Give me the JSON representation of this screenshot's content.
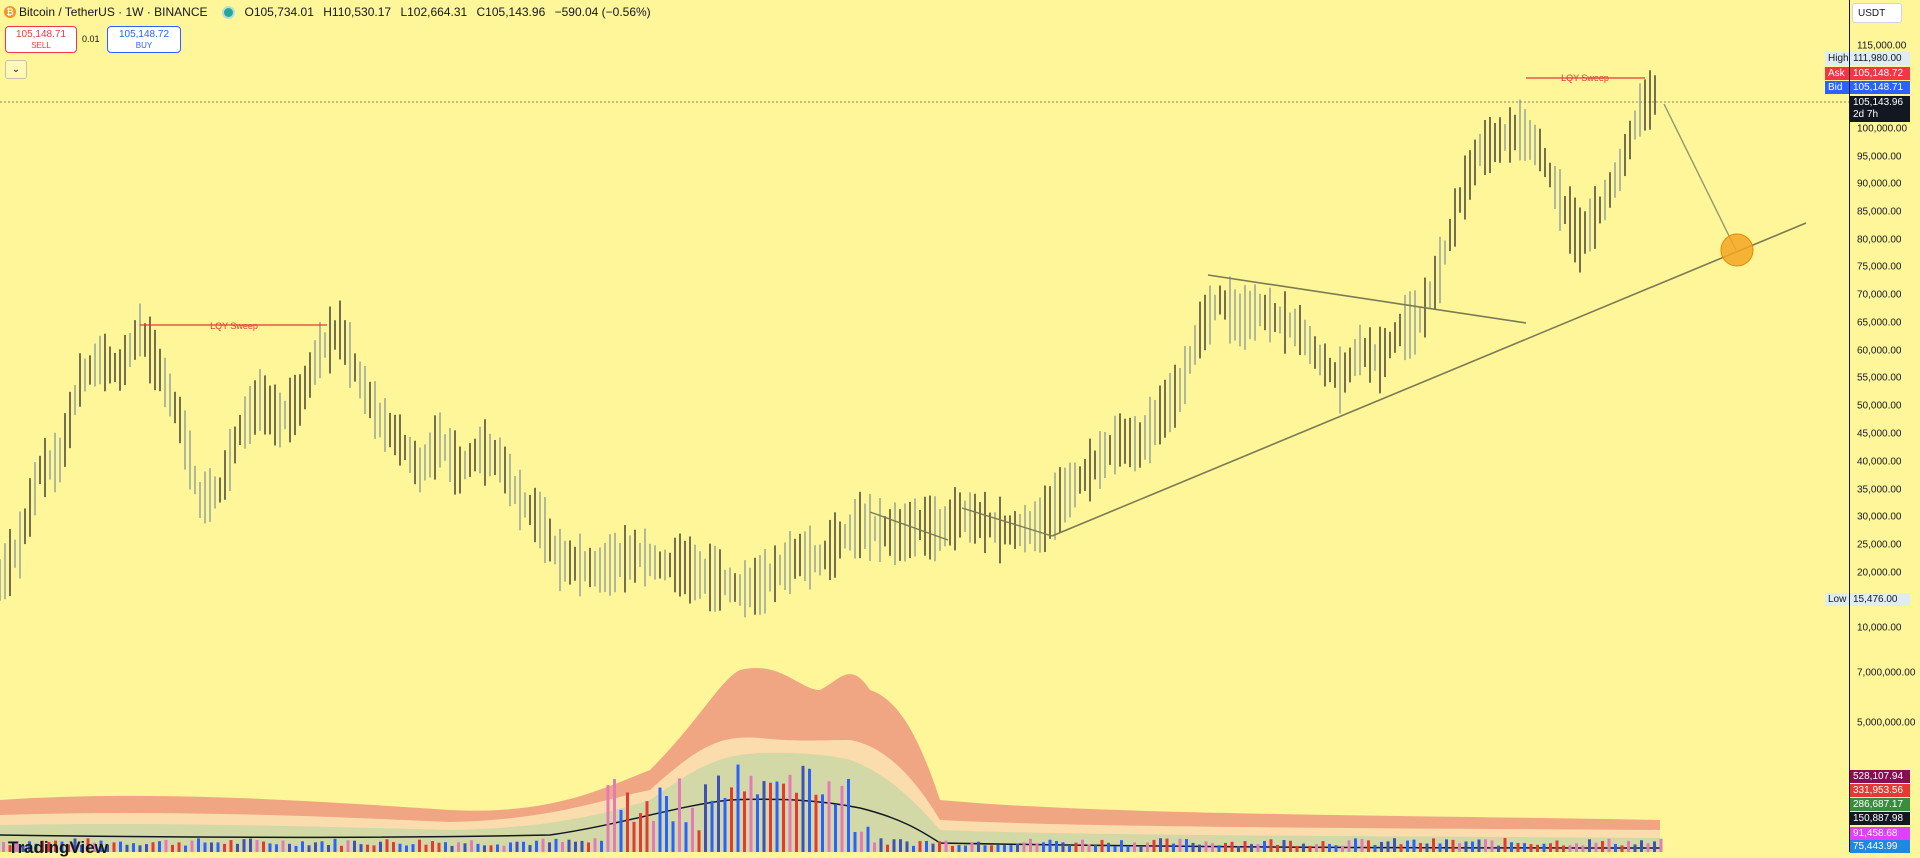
{
  "header": {
    "symbol": "Bitcoin / TetherUS · 1W · BINANCE",
    "open": "O105,734.01",
    "high": "H110,530.17",
    "low": "L102,664.31",
    "close": "C105,143.96",
    "change": "−590.04 (−0.56%)"
  },
  "trade": {
    "sell_price": "105,148.71",
    "sell_label": "SELL",
    "spread": "0.01",
    "buy_price": "105,148.72",
    "buy_label": "BUY"
  },
  "collapse_icon": "chevron-down-icon",
  "price_scale": {
    "currency": "USDT",
    "ticks": [
      "115,000.00",
      "100,000.00",
      "95,000.00",
      "90,000.00",
      "85,000.00",
      "80,000.00",
      "75,000.00",
      "70,000.00",
      "65,000.00",
      "60,000.00",
      "55,000.00",
      "50,000.00",
      "45,000.00",
      "40,000.00",
      "35,000.00",
      "30,000.00",
      "25,000.00",
      "20,000.00",
      "10,000.00",
      "7,000,000.00",
      "5,000,000.00"
    ],
    "high_label": "High",
    "high_value": "111,980.00",
    "ask_label": "Ask",
    "ask_value": "105,148.72",
    "bid_label": "Bid",
    "bid_value": "105,148.71",
    "last_value": "105,143.96",
    "countdown": "2d 7h",
    "low_label": "Low",
    "low_value": "15,476.00",
    "volume_tags": [
      "528,107.94",
      "331,953.56",
      "286,687.17",
      "150,887.98",
      "91,458.68",
      "75,443.99"
    ]
  },
  "annotations": {
    "lqy_left": "LQY Sweep",
    "lqy_right": "LQY Sweep"
  },
  "watermark": "TradingView",
  "colors": {
    "background": "#fff599",
    "up_candle": "#78909c",
    "down_candle": "#131722",
    "ask": "#f23645",
    "bid": "#2962ff",
    "sweep": "#e53935",
    "trendline": "#7a7a55",
    "target_circle": "#f5a623"
  }
}
